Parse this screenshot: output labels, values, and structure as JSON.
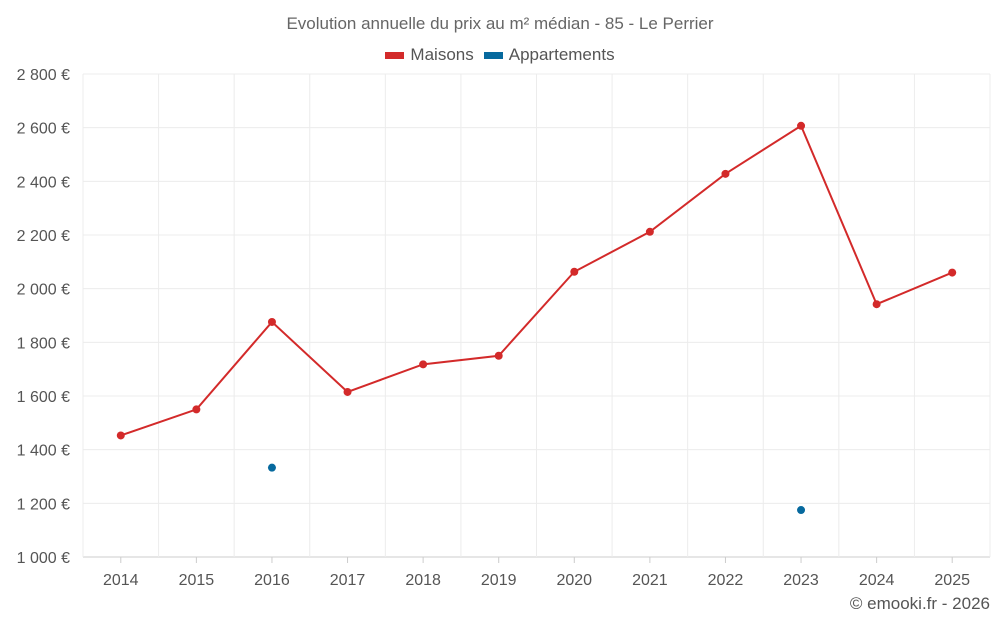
{
  "chart_data": {
    "type": "line",
    "title": "Evolution annuelle du prix au m² médian - 85 - Le Perrier",
    "categories": [
      "2014",
      "2015",
      "2016",
      "2017",
      "2018",
      "2019",
      "2020",
      "2021",
      "2022",
      "2023",
      "2024",
      "2025"
    ],
    "series": [
      {
        "name": "Maisons",
        "color": "#d32a2a",
        "style": "line",
        "values": [
          1453,
          1550,
          1876,
          1615,
          1718,
          1750,
          2063,
          2212,
          2428,
          2607,
          1942,
          2060
        ]
      },
      {
        "name": "Appartements",
        "color": "#06699e",
        "style": "points",
        "values": [
          null,
          null,
          1333,
          null,
          null,
          null,
          null,
          null,
          null,
          1175,
          null,
          null
        ]
      }
    ],
    "ylim": [
      1000,
      2800
    ],
    "yticks": [
      1000,
      1200,
      1400,
      1600,
      1800,
      2000,
      2200,
      2400,
      2600,
      2800
    ],
    "ytick_labels": [
      "1 000 €",
      "1 200 €",
      "1 400 €",
      "1 600 €",
      "1 800 €",
      "2 000 €",
      "2 200 €",
      "2 400 €",
      "2 600 €",
      "2 800 €"
    ],
    "grid": true,
    "legend_position": "top-center"
  },
  "footer": {
    "credit": "© emooki.fr - 2026"
  }
}
